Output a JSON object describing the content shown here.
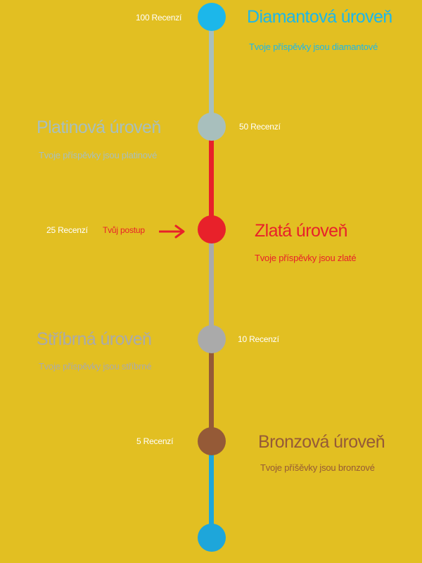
{
  "colors": {
    "background": "#E2BF22",
    "diamond": "#1CB7EA",
    "platinum": "#A8BFBD",
    "gold": "#E8212A",
    "silver": "#AAAAAA",
    "bronze": "#955A37",
    "bottom": "#1EA6DA",
    "count_text": "#FFFFFF"
  },
  "current_progress_label": "Tvůj postup",
  "levels": [
    {
      "count": "100 Recenzí",
      "title": "Diamantová úroveň",
      "subtitle": "Tvoje příspěvky jsou diamantové"
    },
    {
      "count": "50 Recenzí",
      "title": "Platinová úroveň",
      "subtitle": "Tvoje příspěvky jsou platinové"
    },
    {
      "count": "25 Recenzí",
      "title": "Zlatá úroveň",
      "subtitle": "Tvoje příspěvky jsou zlaté"
    },
    {
      "count": "10 Recenzí",
      "title": "Stříbrná úroveň",
      "subtitle": "Tvoje příspěvky jsou stříbrné"
    },
    {
      "count": "5 Recenzí",
      "title": "Bronzová úroveň",
      "subtitle": "Tvoje příšěvky  jsou bronzové"
    }
  ]
}
